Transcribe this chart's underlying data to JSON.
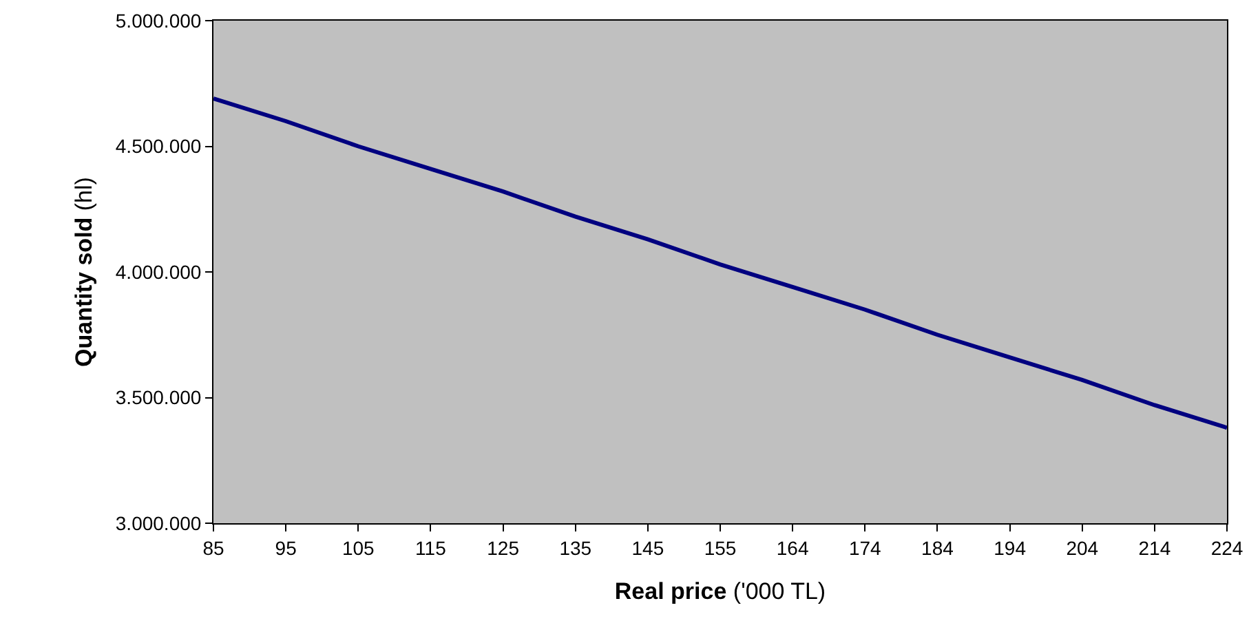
{
  "chart_data": {
    "type": "line",
    "xlabel": "Real price ('000 TL)",
    "ylabel": "Quantity sold (hl)",
    "categories": [
      "85",
      "95",
      "105",
      "115",
      "125",
      "135",
      "145",
      "155",
      "164",
      "174",
      "184",
      "194",
      "204",
      "214",
      "224"
    ],
    "series": [
      {
        "color": "#000080",
        "values": [
          4690000,
          4600000,
          4500000,
          4410000,
          4320000,
          4220000,
          4130000,
          4030000,
          3940000,
          3850000,
          3750000,
          3660000,
          3570000,
          3470000,
          3380000
        ]
      }
    ],
    "ylim": [
      3000000,
      5000000
    ],
    "yticks": [
      {
        "value": 3000000,
        "label": "3.000.000"
      },
      {
        "value": 3500000,
        "label": "3.500.000"
      },
      {
        "value": 4000000,
        "label": "4.000.000"
      },
      {
        "value": 4500000,
        "label": "4.500.000"
      },
      {
        "value": 5000000,
        "label": "5.000.000"
      }
    ],
    "grid": false,
    "marker": "none",
    "line_style": "solid"
  }
}
